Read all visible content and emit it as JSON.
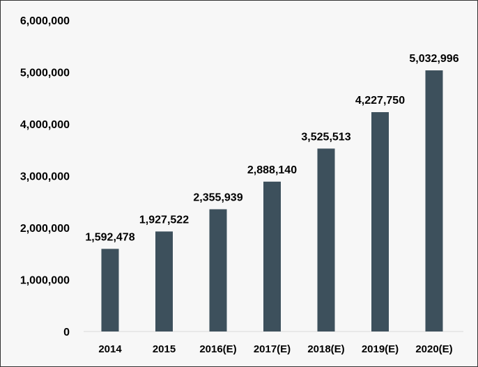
{
  "chart_data": {
    "type": "bar",
    "title": "",
    "xlabel": "",
    "ylabel": "",
    "categories": [
      "2014",
      "2015",
      "2016(E)",
      "2017(E)",
      "2018(E)",
      "2019(E)",
      "2020(E)"
    ],
    "values": [
      1592478,
      1927522,
      2355939,
      2888140,
      3525513,
      4227750,
      5032996
    ],
    "data_labels": [
      "1,592,478",
      "1,927,522",
      "2,355,939",
      "2,888,140",
      "3,525,513",
      "4,227,750",
      "5,032,996"
    ],
    "ylim": [
      0,
      6000000
    ],
    "yticks": [
      0,
      1000000,
      2000000,
      3000000,
      4000000,
      5000000,
      6000000
    ],
    "ytick_labels": [
      "0",
      "1,000,000",
      "2,000,000",
      "3,000,000",
      "4,000,000",
      "5,000,000",
      "6,000,000"
    ],
    "grid": false,
    "legend": "none",
    "colors": {
      "bar": "#3d505c",
      "background": "#f7f7f7",
      "border": "#333333",
      "axis": "#d9d9d9"
    }
  }
}
